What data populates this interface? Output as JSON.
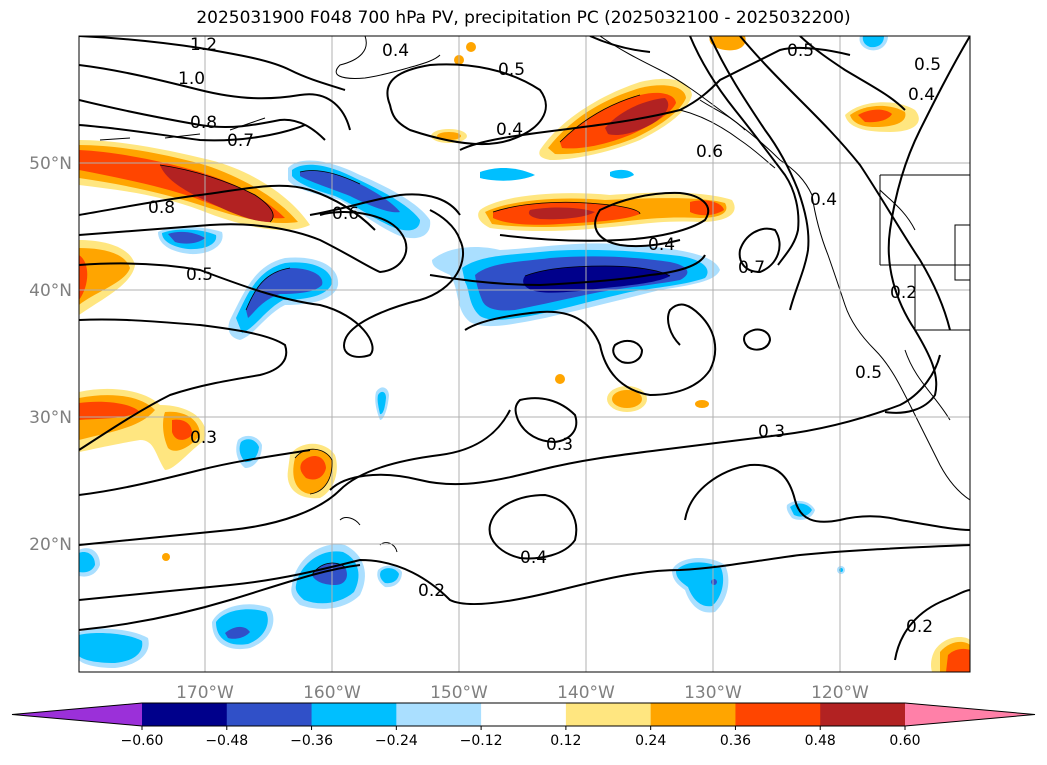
{
  "title": "2025031900 F048 700 hPa PV, precipitation PC (2025032100 - 2025032200)",
  "lat_labels": [
    "50°N",
    "40°N",
    "30°N",
    "20°N"
  ],
  "lon_labels": [
    "170°W",
    "160°W",
    "150°W",
    "140°W",
    "130°W",
    "120°W"
  ],
  "pv_contour_labels": [
    "1.2",
    "1.0",
    "0.8",
    "0.7",
    "0.8",
    "0.6",
    "0.5",
    "0.4",
    "0.5",
    "0.4",
    "0.4",
    "0.6",
    "0.7",
    "0.5",
    "0.4",
    "0.5",
    "0.4",
    "0.2",
    "0.5",
    "0.3",
    "0.3",
    "0.3",
    "0.4",
    "0.2",
    "0.2"
  ],
  "colorbar": {
    "tick_labels": [
      "−0.60",
      "−0.48",
      "−0.36",
      "−0.24",
      "−0.12",
      "0.12",
      "0.24",
      "0.36",
      "0.48",
      "0.60"
    ],
    "colors": [
      "#9b30d9",
      "#00008b",
      "#3050c8",
      "#00bfff",
      "#aadfff",
      "#ffffff",
      "#ffe680",
      "#ffa500",
      "#ff4500",
      "#b22222",
      "#ff80a8"
    ]
  }
}
